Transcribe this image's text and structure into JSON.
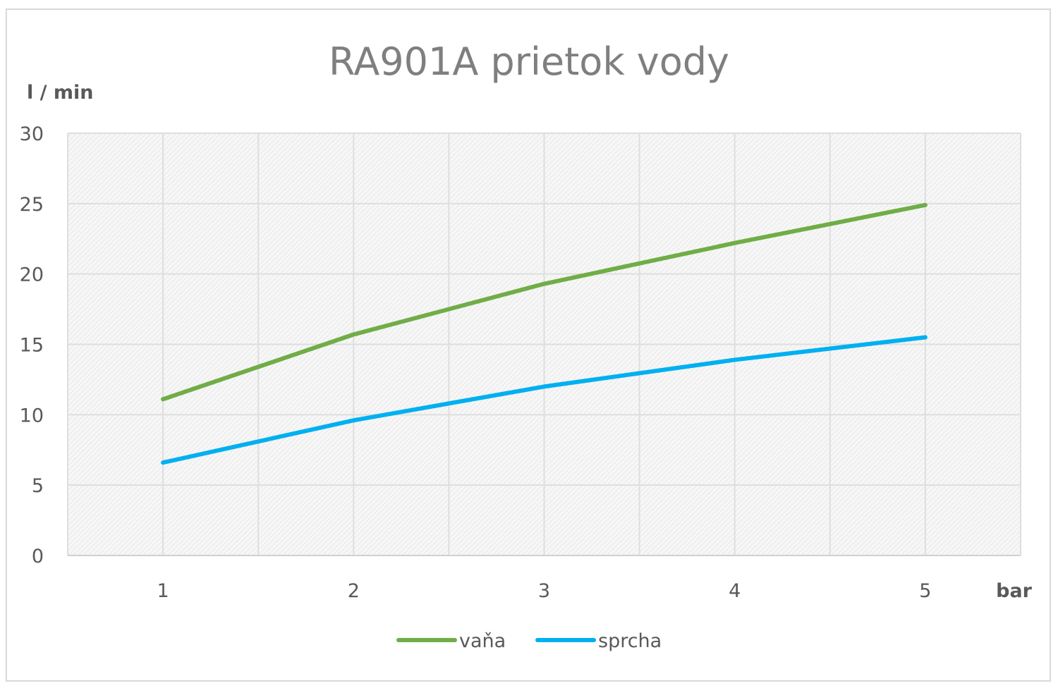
{
  "chart_data": {
    "type": "line",
    "title": "RA901A prietok vody",
    "ylabel": "l / min",
    "xlabel": "bar",
    "x": [
      1,
      2,
      3,
      4,
      5
    ],
    "ylim": [
      0,
      30
    ],
    "yticks": [
      0,
      5,
      10,
      15,
      20,
      25,
      30
    ],
    "grid": true,
    "legend": "bottom",
    "series": [
      {
        "name": "vaňa",
        "values": [
          11.1,
          15.7,
          19.3,
          22.2,
          24.9
        ],
        "color": "#70ad47"
      },
      {
        "name": "sprcha",
        "values": [
          6.6,
          9.6,
          12.0,
          13.9,
          15.5
        ],
        "color": "#00b0f0"
      }
    ]
  }
}
